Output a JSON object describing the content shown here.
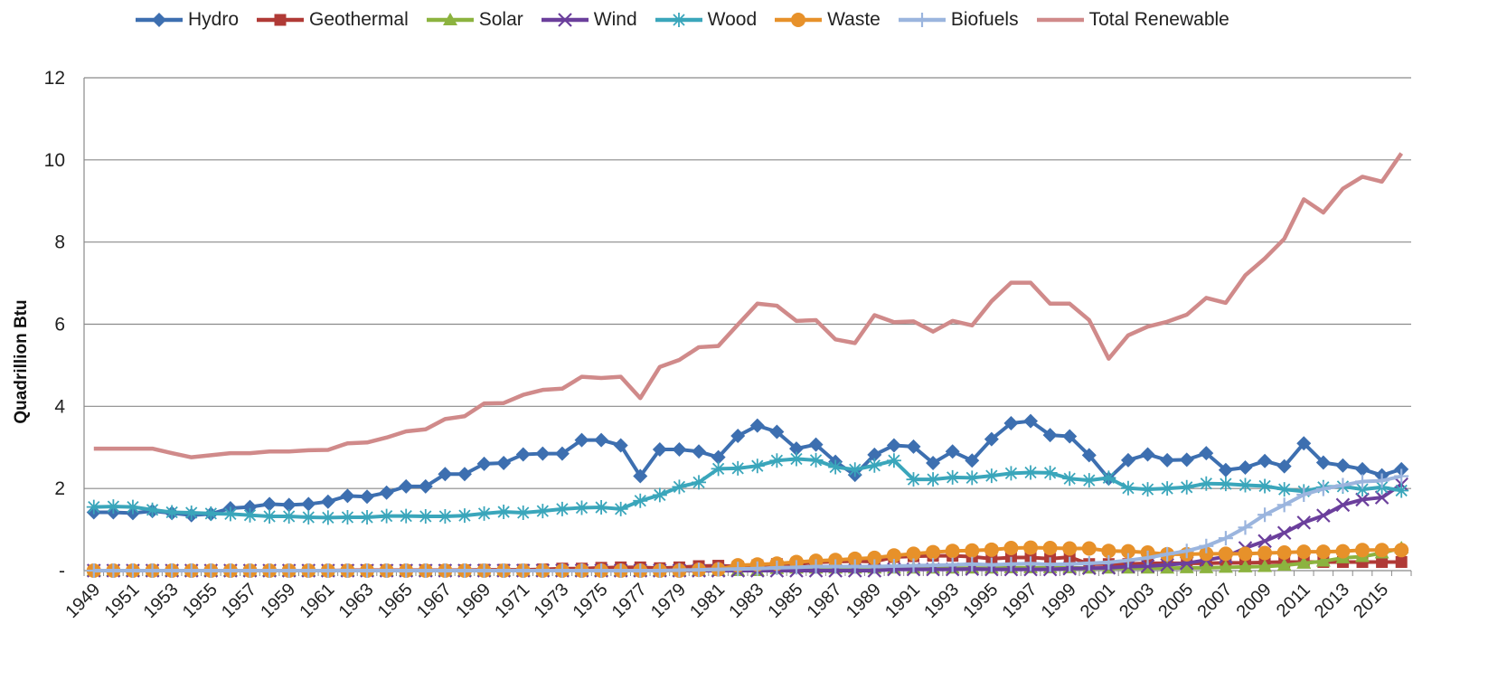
{
  "chart_data": {
    "type": "line",
    "title": "",
    "xlabel": "",
    "ylabel": "Quadrillion  Btu",
    "ylim": [
      0,
      12
    ],
    "yticks": [
      {
        "value": 0,
        "label": "-"
      },
      {
        "value": 2,
        "label": "2"
      },
      {
        "value": 4,
        "label": "4"
      },
      {
        "value": 6,
        "label": "6"
      },
      {
        "value": 8,
        "label": "8"
      },
      {
        "value": 10,
        "label": "10"
      },
      {
        "value": 12,
        "label": "12"
      }
    ],
    "xstart": 1949,
    "xend": 2016,
    "xtick_labels": [
      "1949",
      "1951",
      "1953",
      "1955",
      "1957",
      "1959",
      "1961",
      "1963",
      "1965",
      "1967",
      "1969",
      "1971",
      "1973",
      "1975",
      "1977",
      "1979",
      "1981",
      "1983",
      "1985",
      "1987",
      "1989",
      "1991",
      "1993",
      "1995",
      "1997",
      "1999",
      "2001",
      "2003",
      "2005",
      "2007",
      "2009",
      "2011",
      "2013",
      "2015"
    ],
    "grid": "horizontal",
    "legend_position": "top",
    "series": [
      {
        "name": "Hydro",
        "color": "#3d6fb0",
        "marker": "diamond",
        "values": [
          1.42,
          1.42,
          1.4,
          1.45,
          1.4,
          1.35,
          1.38,
          1.52,
          1.55,
          1.62,
          1.6,
          1.62,
          1.68,
          1.82,
          1.8,
          1.9,
          2.05,
          2.05,
          2.35,
          2.35,
          2.6,
          2.62,
          2.83,
          2.85,
          2.85,
          3.18,
          3.18,
          3.05,
          2.3,
          2.95,
          2.95,
          2.9,
          2.76,
          3.28,
          3.53,
          3.38,
          2.97,
          3.07,
          2.65,
          2.33,
          2.82,
          3.05,
          3.02,
          2.62,
          2.9,
          2.68,
          3.2,
          3.59,
          3.64,
          3.3,
          3.27,
          2.81,
          2.24,
          2.69,
          2.83,
          2.69,
          2.7,
          2.86,
          2.45,
          2.51,
          2.67,
          2.54,
          3.1,
          2.63,
          2.56,
          2.47,
          2.32,
          2.47
        ]
      },
      {
        "name": "Geothermal",
        "color": "#b03a36",
        "marker": "square",
        "values": [
          0,
          0,
          0,
          0,
          0,
          0,
          0,
          0,
          0,
          0,
          0,
          0,
          0,
          0.01,
          0.01,
          0.01,
          0.01,
          0.01,
          0.01,
          0.01,
          0.02,
          0.02,
          0.02,
          0.03,
          0.05,
          0.05,
          0.07,
          0.08,
          0.08,
          0.06,
          0.08,
          0.11,
          0.12,
          0.1,
          0.13,
          0.16,
          0.16,
          0.2,
          0.22,
          0.23,
          0.22,
          0.33,
          0.35,
          0.36,
          0.36,
          0.34,
          0.29,
          0.32,
          0.32,
          0.29,
          0.33,
          0.16,
          0.16,
          0.16,
          0.18,
          0.18,
          0.18,
          0.18,
          0.19,
          0.19,
          0.2,
          0.21,
          0.21,
          0.21,
          0.21,
          0.21,
          0.21,
          0.21
        ]
      },
      {
        "name": "Solar",
        "color": "#8cb33f",
        "marker": "triangle",
        "values": [
          0,
          0,
          0,
          0,
          0,
          0,
          0,
          0,
          0,
          0,
          0,
          0,
          0,
          0,
          0,
          0,
          0,
          0,
          0,
          0,
          0,
          0,
          0,
          0,
          0,
          0,
          0,
          0,
          0,
          0,
          0,
          0,
          0,
          0,
          0,
          0.05,
          0.06,
          0.06,
          0.06,
          0.06,
          0.06,
          0.06,
          0.06,
          0.06,
          0.06,
          0.06,
          0.06,
          0.07,
          0.07,
          0.07,
          0.07,
          0.06,
          0.06,
          0.06,
          0.06,
          0.06,
          0.07,
          0.07,
          0.08,
          0.09,
          0.1,
          0.13,
          0.18,
          0.23,
          0.31,
          0.34,
          0.43,
          0.55
        ]
      },
      {
        "name": "Wind",
        "color": "#6b3f9c",
        "marker": "x",
        "values": [
          0,
          0,
          0,
          0,
          0,
          0,
          0,
          0,
          0,
          0,
          0,
          0,
          0,
          0,
          0,
          0,
          0,
          0,
          0,
          0,
          0,
          0,
          0,
          0,
          0,
          0,
          0,
          0,
          0,
          0,
          0,
          0,
          0,
          0,
          0,
          0,
          0,
          0,
          0,
          0,
          0,
          0.03,
          0.03,
          0.03,
          0.03,
          0.04,
          0.03,
          0.03,
          0.03,
          0.03,
          0.05,
          0.06,
          0.07,
          0.1,
          0.11,
          0.14,
          0.18,
          0.26,
          0.34,
          0.55,
          0.72,
          0.92,
          1.17,
          1.34,
          1.6,
          1.73,
          1.78,
          2.1
        ]
      },
      {
        "name": "Wood",
        "color": "#3aa6bb",
        "marker": "asterisk",
        "values": [
          1.55,
          1.56,
          1.55,
          1.48,
          1.42,
          1.41,
          1.39,
          1.38,
          1.35,
          1.32,
          1.32,
          1.3,
          1.29,
          1.3,
          1.3,
          1.33,
          1.33,
          1.32,
          1.32,
          1.34,
          1.39,
          1.43,
          1.41,
          1.45,
          1.5,
          1.53,
          1.54,
          1.5,
          1.7,
          1.84,
          2.04,
          2.15,
          2.48,
          2.49,
          2.55,
          2.68,
          2.72,
          2.69,
          2.52,
          2.46,
          2.56,
          2.68,
          2.22,
          2.22,
          2.27,
          2.26,
          2.31,
          2.37,
          2.39,
          2.38,
          2.24,
          2.2,
          2.26,
          2.01,
          1.98,
          2.0,
          2.03,
          2.12,
          2.11,
          2.08,
          2.06,
          1.98,
          1.93,
          2.03,
          2.05,
          1.98,
          2.03,
          1.95
        ]
      },
      {
        "name": "Waste",
        "color": "#e7912a",
        "marker": "circle",
        "values": [
          0,
          0,
          0,
          0,
          0,
          0,
          0,
          0,
          0,
          0,
          0,
          0,
          0,
          0,
          0,
          0,
          0,
          0,
          0,
          0,
          0,
          0,
          0,
          0,
          0,
          0,
          0,
          0,
          0,
          0,
          0,
          0.02,
          0.03,
          0.13,
          0.15,
          0.17,
          0.21,
          0.24,
          0.26,
          0.29,
          0.31,
          0.37,
          0.41,
          0.45,
          0.48,
          0.49,
          0.51,
          0.55,
          0.56,
          0.55,
          0.54,
          0.54,
          0.48,
          0.47,
          0.44,
          0.4,
          0.4,
          0.41,
          0.41,
          0.41,
          0.43,
          0.44,
          0.46,
          0.46,
          0.47,
          0.5,
          0.5,
          0.5
        ]
      },
      {
        "name": "Biofuels",
        "color": "#9bb5de",
        "marker": "plus",
        "values": [
          0,
          0,
          0,
          0,
          0,
          0,
          0,
          0,
          0,
          0,
          0,
          0,
          0,
          0,
          0,
          0,
          0,
          0,
          0,
          0,
          0,
          0,
          0,
          0,
          0,
          0,
          0,
          0,
          0,
          0,
          0.01,
          0.02,
          0.03,
          0.04,
          0.05,
          0.07,
          0.08,
          0.1,
          0.1,
          0.1,
          0.1,
          0.11,
          0.12,
          0.13,
          0.14,
          0.16,
          0.14,
          0.16,
          0.17,
          0.15,
          0.16,
          0.18,
          0.2,
          0.25,
          0.31,
          0.4,
          0.48,
          0.6,
          0.79,
          1.05,
          1.36,
          1.6,
          1.85,
          1.99,
          2.08,
          2.17,
          2.19,
          2.3
        ]
      },
      {
        "name": "Total Renewable",
        "color": "#d08a8a",
        "marker": "none",
        "values": [
          2.97,
          2.97,
          2.97,
          2.97,
          2.86,
          2.76,
          2.81,
          2.86,
          2.86,
          2.9,
          2.9,
          2.93,
          2.94,
          3.1,
          3.12,
          3.24,
          3.39,
          3.44,
          3.69,
          3.76,
          4.07,
          4.08,
          4.28,
          4.4,
          4.43,
          4.72,
          4.69,
          4.72,
          4.2,
          4.96,
          5.13,
          5.44,
          5.47,
          5.99,
          6.5,
          6.45,
          6.08,
          6.1,
          5.63,
          5.54,
          6.22,
          6.05,
          6.07,
          5.82,
          6.08,
          5.97,
          6.56,
          7.01,
          7.01,
          6.5,
          6.5,
          6.1,
          5.16,
          5.73,
          5.94,
          6.06,
          6.23,
          6.64,
          6.52,
          7.19,
          7.6,
          8.08,
          9.04,
          8.72,
          9.3,
          9.59,
          9.47,
          10.16
        ]
      }
    ]
  }
}
